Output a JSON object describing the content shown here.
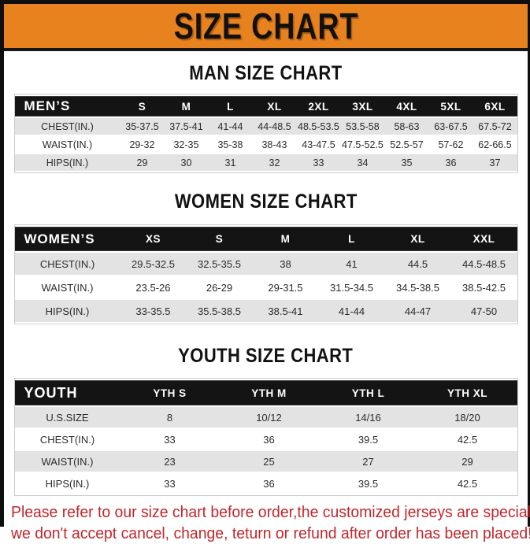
{
  "banner": {
    "title": "SIZE CHART",
    "bg_color": "#e8821e",
    "text_color": "#111111"
  },
  "sections": [
    {
      "id": "mens",
      "heading": "MAN SIZE CHART",
      "table": {
        "header": [
          "MEN’S",
          "S",
          "M",
          "L",
          "XL",
          "2XL",
          "3XL",
          "4XL",
          "5XL",
          "6XL"
        ],
        "rows": [
          [
            "CHEST(IN.)",
            "35-37.5",
            "37.5-41",
            "41-44",
            "44-48.5",
            "48.5-53.5",
            "53.5-58",
            "58-63",
            "63-67.5",
            "67.5-72"
          ],
          [
            "WAIST(IN.)",
            "29-32",
            "32-35",
            "35-38",
            "38-43",
            "43-47.5",
            "47.5-52.5",
            "52.5-57",
            "57-62",
            "62-66.5"
          ],
          [
            "HIPS(IN.)",
            "29",
            "30",
            "31",
            "32",
            "33",
            "34",
            "35",
            "36",
            "37"
          ]
        ]
      }
    },
    {
      "id": "womens",
      "heading": "WOMEN SIZE CHART",
      "table": {
        "header": [
          "WOMEN’S",
          "XS",
          "S",
          "M",
          "L",
          "XL",
          "XXL"
        ],
        "rows": [
          [
            "CHEST(IN.)",
            "29.5-32.5",
            "32.5-35.5",
            "38",
            "41",
            "44.5",
            "44.5-48.5"
          ],
          [
            "WAIST(IN.)",
            "23.5-26",
            "26-29",
            "29-31.5",
            "31.5-34.5",
            "34.5-38.5",
            "38.5-42.5"
          ],
          [
            "HIPS(IN.)",
            "33-35.5",
            "35.5-38.5",
            "38.5-41",
            "41-44",
            "44-47",
            "47-50"
          ]
        ]
      }
    },
    {
      "id": "youth",
      "heading": "YOUTH SIZE CHART",
      "table": {
        "header": [
          "YOUTH",
          "YTH S",
          "YTH M",
          "YTH L",
          "YTH XL"
        ],
        "rows": [
          [
            "U.S.SIZE",
            "8",
            "10/12",
            "14/16",
            "18/20"
          ],
          [
            "CHEST(IN.)",
            "33",
            "36",
            "39.5",
            "42.5"
          ],
          [
            "WAIST(IN.)",
            "23",
            "25",
            "27",
            "29"
          ],
          [
            "HIPS(IN.)",
            "33",
            "36",
            "39.5",
            "42.5"
          ]
        ]
      }
    }
  ],
  "footer": {
    "line1": "Please refer to our size chart before order,the customized jerseys are special products,",
    "line2": "we don't accept cancel, change, teturn or refund after order has been placed!",
    "text_color": "#c2262b"
  },
  "colors": {
    "banner_orange": "#e8821e",
    "table_header_black": "#141414",
    "row_gray": "#e3e3e3",
    "frame_black": "#0e0e0e"
  }
}
